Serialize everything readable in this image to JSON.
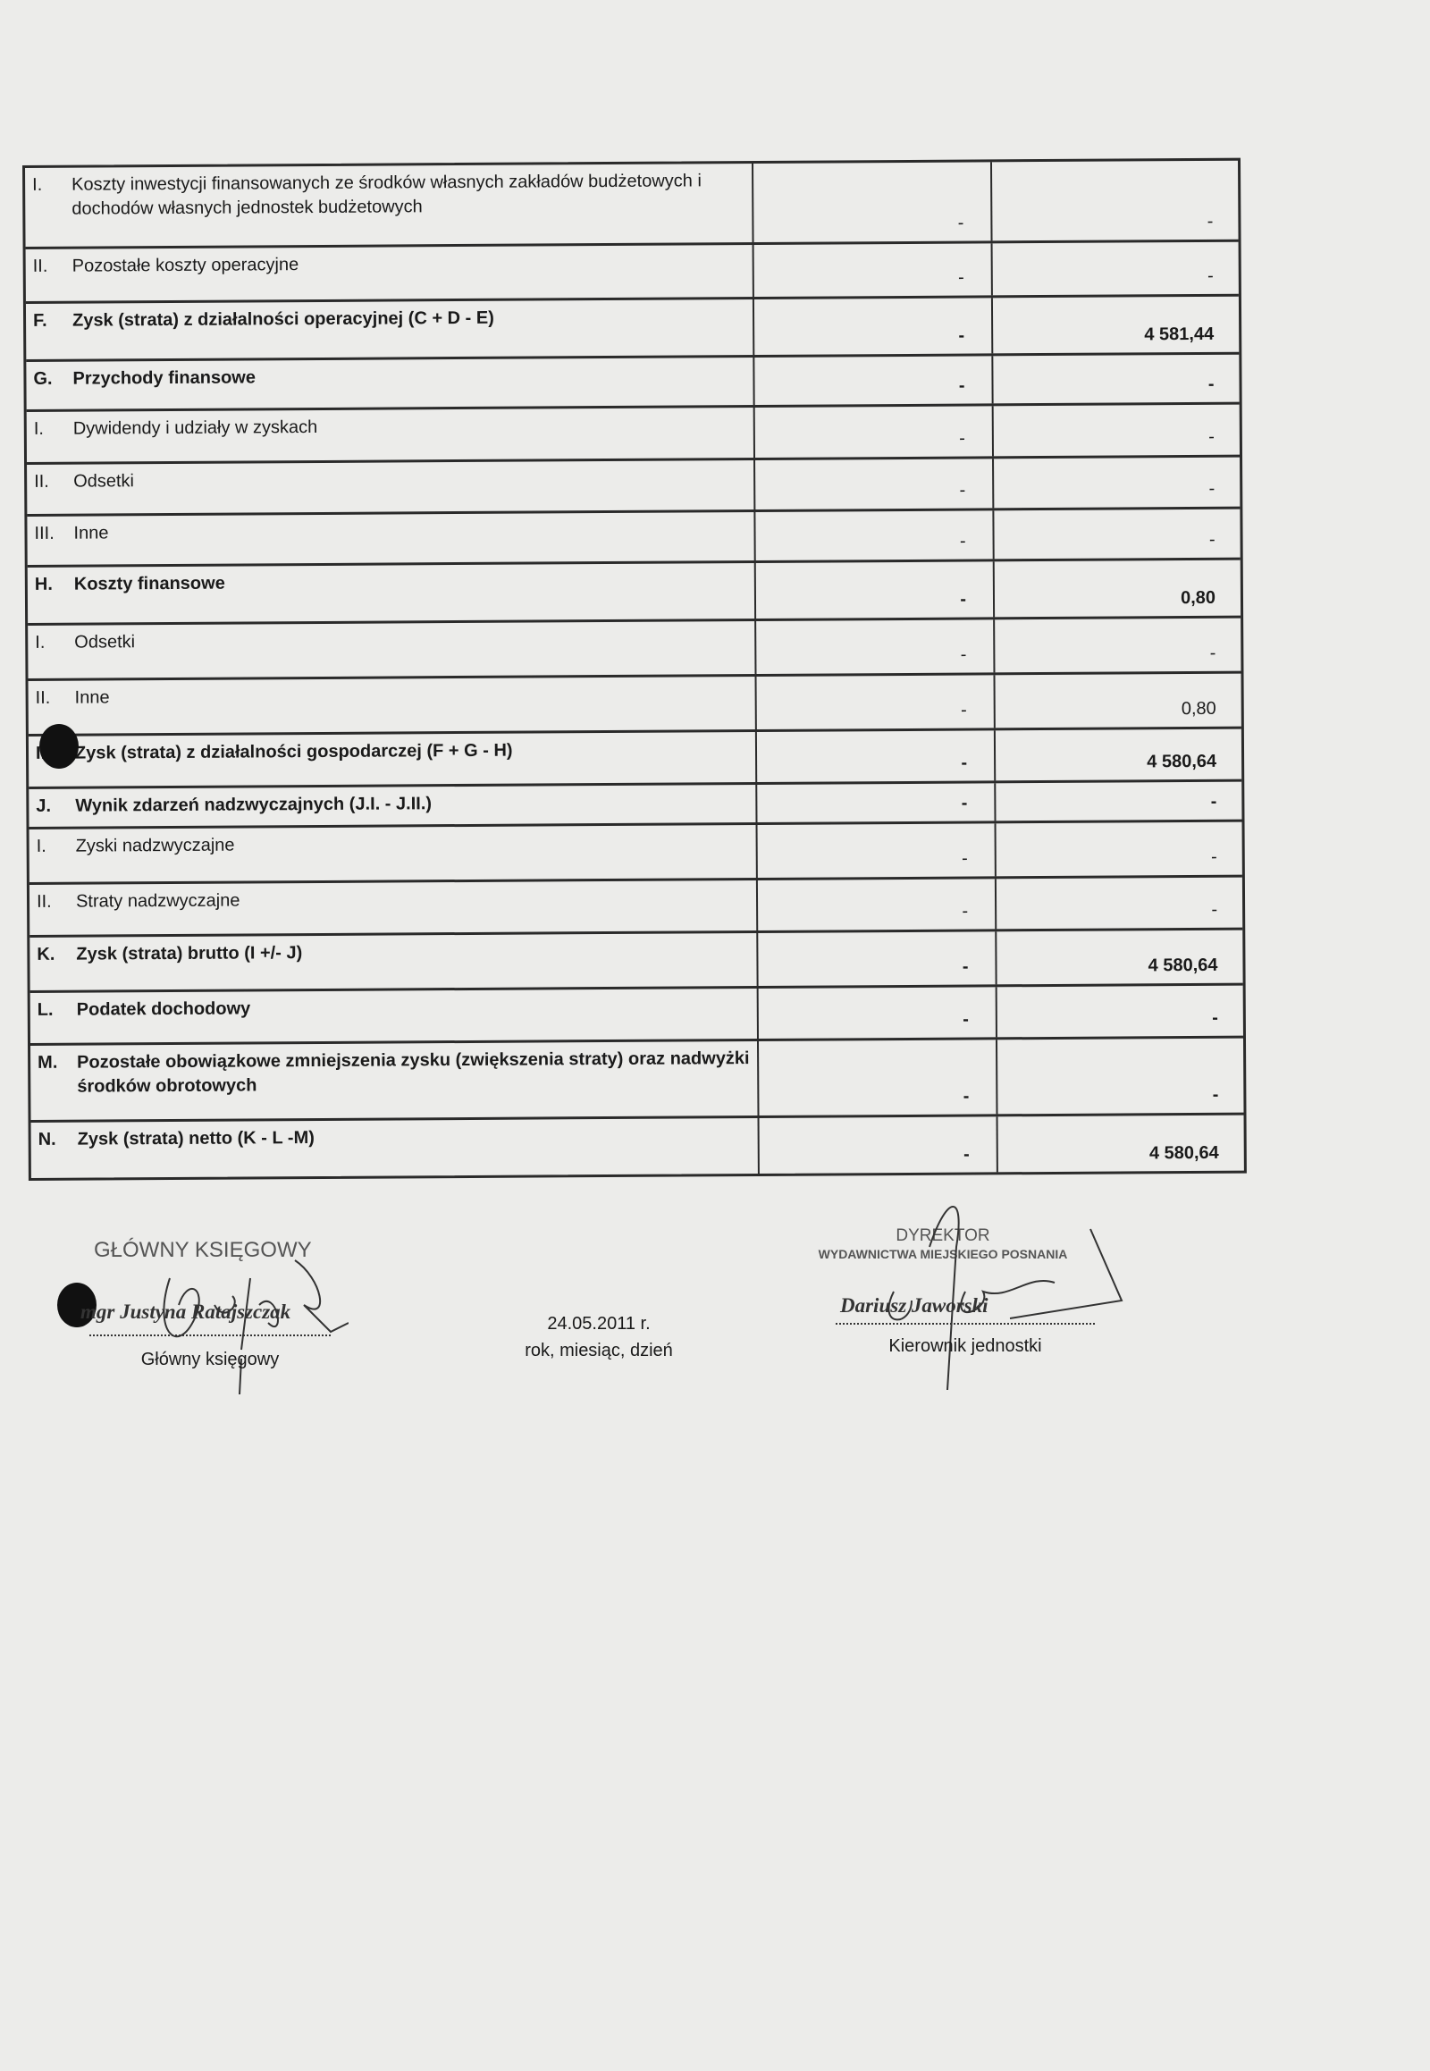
{
  "rows": [
    {
      "num": "I.",
      "label": "Koszty inwestycji finansowanych ze środków własnych zakładów budżetowych i dochodów własnych jednostek budżetowych",
      "bold": false,
      "v1": "-",
      "v2": "-",
      "h": 91
    },
    {
      "num": "II.",
      "label": "Pozostałe koszty operacyjne",
      "bold": false,
      "v1": "-",
      "v2": "-",
      "h": 61
    },
    {
      "num": "F.",
      "label": "Zysk (strata) z działalności operacyjnej (C + D - E)",
      "bold": true,
      "v1": "-",
      "v2": "4 581,44",
      "h": 65
    },
    {
      "num": "G.",
      "label": "Przychody finansowe",
      "bold": true,
      "v1": "-",
      "v2": "-",
      "h": 56
    },
    {
      "num": "I.",
      "label": "Dywidendy i udziały w zyskach",
      "bold": false,
      "v1": "-",
      "v2": "-",
      "h": 59
    },
    {
      "num": "II.",
      "label": "Odsetki",
      "bold": false,
      "v1": "-",
      "v2": "-",
      "h": 58
    },
    {
      "num": "III.",
      "label": "Inne",
      "bold": false,
      "v1": "-",
      "v2": "-",
      "h": 57
    },
    {
      "num": "H.",
      "label": "Koszty finansowe",
      "bold": true,
      "v1": "-",
      "v2": "0,80",
      "h": 65
    },
    {
      "num": "I.",
      "label": "Odsetki",
      "bold": false,
      "v1": "-",
      "v2": "-",
      "h": 62
    },
    {
      "num": "II.",
      "label": "Inne",
      "bold": false,
      "v1": "-",
      "v2": "0,80",
      "h": 62
    },
    {
      "num": "I.",
      "label": "Zysk (strata) z działalności gospodarczej (F + G - H)",
      "bold": true,
      "v1": "-",
      "v2": "4 580,64",
      "h": 59
    },
    {
      "num": "J.",
      "label": "Wynik zdarzeń nadzwyczajnych (J.I. - J.II.)",
      "bold": true,
      "v1": "-",
      "v2": "-",
      "h": 45
    },
    {
      "num": "I.",
      "label": "Zyski nadzwyczajne",
      "bold": false,
      "v1": "-",
      "v2": "-",
      "h": 62
    },
    {
      "num": "II.",
      "label": "Straty nadzwyczajne",
      "bold": false,
      "v1": "-",
      "v2": "-",
      "h": 59
    },
    {
      "num": "K.",
      "label": "Zysk (strata) brutto (I +/- J)",
      "bold": true,
      "v1": "-",
      "v2": "4 580,64",
      "h": 62
    },
    {
      "num": "L.",
      "label": "Podatek dochodowy",
      "bold": true,
      "v1": "-",
      "v2": "-",
      "h": 59
    },
    {
      "num": "M.",
      "label": "Pozostałe obowiązkowe zmniejszenia zysku (zwiększenia straty) oraz nadwyżki środków obrotowych",
      "bold": true,
      "v1": "-",
      "v2": "-",
      "h": 86
    },
    {
      "num": "N.",
      "label": "Zysk (strata) netto (K - L -M)",
      "bold": true,
      "v1": "-",
      "v2": "4 580,64",
      "h": 62
    }
  ],
  "signatures": {
    "accountant_stamp": "GŁÓWNY KSIĘGOWY",
    "accountant_name": "mgr Justyna Ratajszczak",
    "accountant_caption": "Główny księgowy",
    "date": "24.05.2011 r.",
    "date_caption": "rok, miesiąc, dzień",
    "director_stamp_title": "DYREKTOR",
    "director_stamp_org": "WYDAWNICTWA MIEJSKIEGO POSNANIA",
    "director_name": "Dariusz Jaworski",
    "director_caption": "Kierownik jednostki"
  }
}
